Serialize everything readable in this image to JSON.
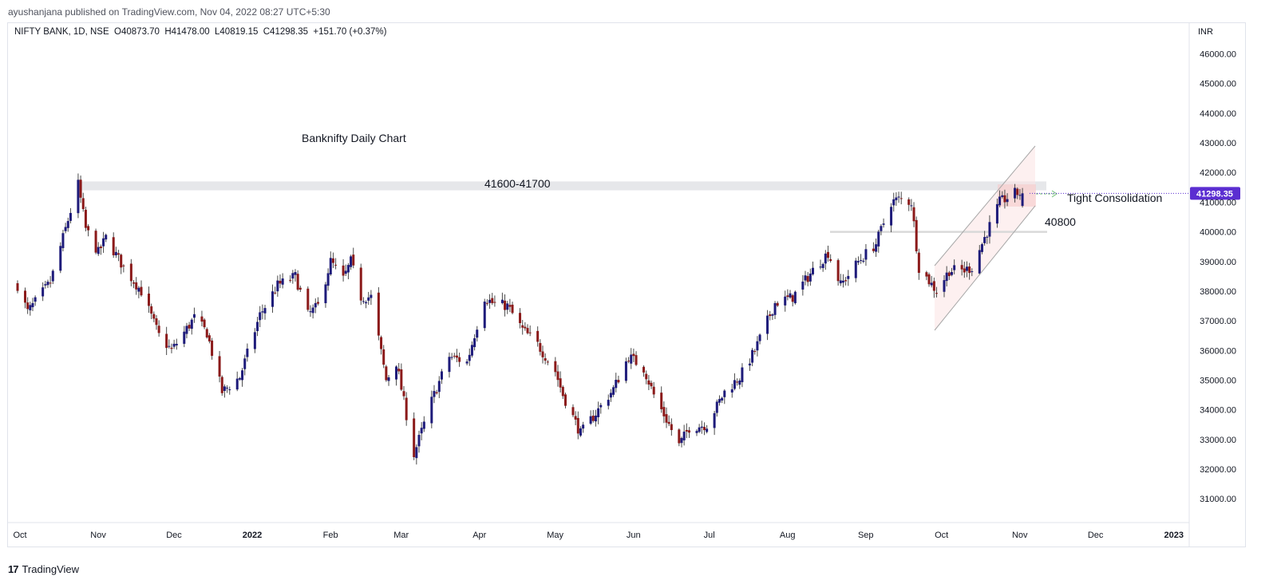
{
  "publisher_line": "ayushanjana published on TradingView.com, Nov 04, 2022 08:27 UTC+5:30",
  "legend_line": "NIFTY BANK, 1D, NSE  O40873.70  H41478.00  L40819.15  C41298.35  +151.70 (+0.37%)",
  "footer": {
    "logo_text": "TradingView",
    "logo_mark": "17"
  },
  "colors": {
    "up": "#1e1b7a",
    "down": "#8b1a1a",
    "wick": "#4a4a4a",
    "price_tag": "#5b2ed1",
    "zone": "#e6e7ea",
    "channel_fill": "#fbe3e3",
    "arrow": "#6fbf73"
  },
  "chart_data": {
    "type": "candlestick",
    "symbol": "NIFTY BANK",
    "timeframe": "1D",
    "exchange": "NSE",
    "currency_label": "INR",
    "last_price_label": "41298.35",
    "ylim": [
      30300,
      47000
    ],
    "y_ticks": [
      "46000.00",
      "45000.00",
      "44000.00",
      "43000.00",
      "42000.00",
      "41000.00",
      "40000.00",
      "39000.00",
      "38000.00",
      "37000.00",
      "36000.00",
      "35000.00",
      "34000.00",
      "33000.00",
      "32000.00",
      "31000.00"
    ],
    "x_ticks": [
      {
        "label": "Oct",
        "bold": false
      },
      {
        "label": "Nov",
        "bold": false
      },
      {
        "label": "Dec",
        "bold": false
      },
      {
        "label": "2022",
        "bold": true
      },
      {
        "label": "Feb",
        "bold": false
      },
      {
        "label": "Mar",
        "bold": false
      },
      {
        "label": "Apr",
        "bold": false
      },
      {
        "label": "May",
        "bold": false
      },
      {
        "label": "Jun",
        "bold": false
      },
      {
        "label": "Jul",
        "bold": false
      },
      {
        "label": "Aug",
        "bold": false
      },
      {
        "label": "Sep",
        "bold": false
      },
      {
        "label": "Oct",
        "bold": false
      },
      {
        "label": "Nov",
        "bold": false
      },
      {
        "label": "Dec",
        "bold": false
      },
      {
        "label": "2023",
        "bold": true
      }
    ],
    "anchors": [
      [
        "2021-10-01",
        38200
      ],
      [
        "2021-10-05",
        37300
      ],
      [
        "2021-10-14",
        38300
      ],
      [
        "2021-10-19",
        39800
      ],
      [
        "2021-10-25",
        41600
      ],
      [
        "2021-10-28",
        40100
      ],
      [
        "2021-11-02",
        39300
      ],
      [
        "2021-11-05",
        39800
      ],
      [
        "2021-11-12",
        38800
      ],
      [
        "2021-11-19",
        38000
      ],
      [
        "2021-11-26",
        36500
      ],
      [
        "2021-12-01",
        36000
      ],
      [
        "2021-12-10",
        37100
      ],
      [
        "2021-12-15",
        36600
      ],
      [
        "2021-12-21",
        34600
      ],
      [
        "2021-12-28",
        35100
      ],
      [
        "2022-01-05",
        37200
      ],
      [
        "2022-01-12",
        38200
      ],
      [
        "2022-01-19",
        38500
      ],
      [
        "2022-01-24",
        37200
      ],
      [
        "2022-01-28",
        37500
      ],
      [
        "2022-02-02",
        39000
      ],
      [
        "2022-02-07",
        38400
      ],
      [
        "2022-02-10",
        39000
      ],
      [
        "2022-02-14",
        37800
      ],
      [
        "2022-02-18",
        37800
      ],
      [
        "2022-02-24",
        35000
      ],
      [
        "2022-02-28",
        35600
      ],
      [
        "2022-03-07",
        32500
      ],
      [
        "2022-03-14",
        34300
      ],
      [
        "2022-03-21",
        35800
      ],
      [
        "2022-03-28",
        35600
      ],
      [
        "2022-04-04",
        37800
      ],
      [
        "2022-04-07",
        37600
      ],
      [
        "2022-04-13",
        37500
      ],
      [
        "2022-04-19",
        36700
      ],
      [
        "2022-04-25",
        36200
      ],
      [
        "2022-05-02",
        35300
      ],
      [
        "2022-05-05",
        34500
      ],
      [
        "2022-05-12",
        33200
      ],
      [
        "2022-05-19",
        34000
      ],
      [
        "2022-05-25",
        34700
      ],
      [
        "2022-05-31",
        35800
      ],
      [
        "2022-06-06",
        35400
      ],
      [
        "2022-06-10",
        34500
      ],
      [
        "2022-06-16",
        33500
      ],
      [
        "2022-06-20",
        32800
      ],
      [
        "2022-06-24",
        33400
      ],
      [
        "2022-07-01",
        33500
      ],
      [
        "2022-07-08",
        34600
      ],
      [
        "2022-07-14",
        35100
      ],
      [
        "2022-07-20",
        36000
      ],
      [
        "2022-07-28",
        37600
      ],
      [
        "2022-08-04",
        37800
      ],
      [
        "2022-08-12",
        38700
      ],
      [
        "2022-08-18",
        39300
      ],
      [
        "2022-08-23",
        38200
      ],
      [
        "2022-08-30",
        39000
      ],
      [
        "2022-09-06",
        39600
      ],
      [
        "2022-09-12",
        41000
      ],
      [
        "2022-09-15",
        41100
      ],
      [
        "2022-09-20",
        41000
      ],
      [
        "2022-09-23",
        38800
      ],
      [
        "2022-09-30",
        38000
      ],
      [
        "2022-10-05",
        38700
      ],
      [
        "2022-10-11",
        38700
      ],
      [
        "2022-10-14",
        38800
      ],
      [
        "2022-10-20",
        40000
      ],
      [
        "2022-10-25",
        41000
      ],
      [
        "2022-10-31",
        41300
      ],
      [
        "2022-11-03",
        41298
      ]
    ],
    "annotations": [
      {
        "text": "Banknifty Daily Chart"
      },
      {
        "text": "41600-41700"
      },
      {
        "text": "Tight Consolidation"
      },
      {
        "text": "40800"
      }
    ]
  }
}
